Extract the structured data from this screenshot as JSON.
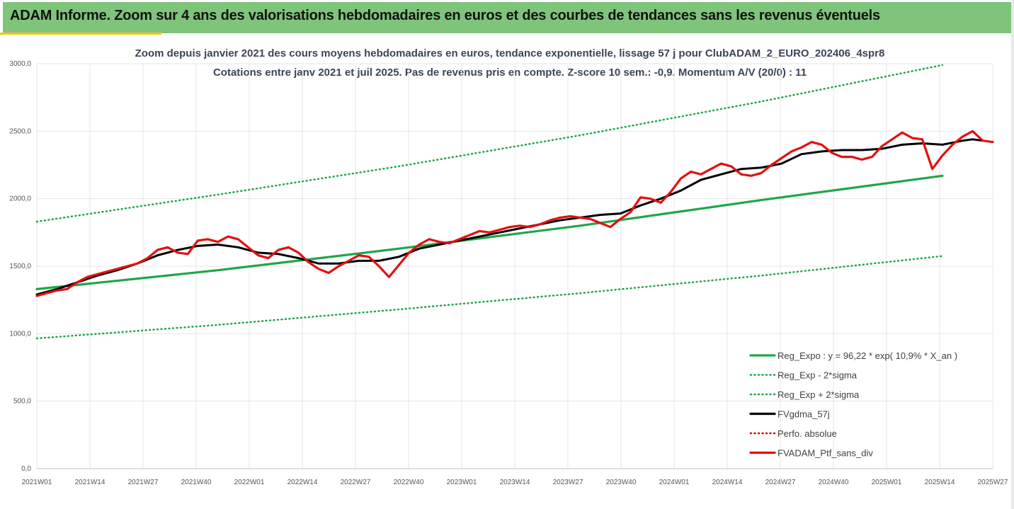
{
  "header": {
    "title": "ADAM Informe. Zoom sur 4 ans des valorisations hebdomadaires en euros et des courbes de tendances sans les revenus éventuels",
    "background": "#7ec47a",
    "accent": "#f5c518"
  },
  "chart_data": {
    "type": "line",
    "title_line1": "Zoom depuis janvier 2021 des cours moyens hebdomadaires  en euros, tendance exponentielle, lissage 57 j pour ClubADAM_2_EURO_202406_4spr8",
    "title_line2": "Cotations  entre janv 2021 et juil 2025. Pas de revenus pris en compte. Z-score 10 sem.: -0,9. Momentum  A/V (20/0) : 11",
    "ylim": [
      0,
      3000
    ],
    "y_ticks": [
      "0,0",
      "500,0",
      "1000,0",
      "1500,0",
      "2000,0",
      "2500,0",
      "3000,0"
    ],
    "x_ticks": [
      "2021W01",
      "2021W14",
      "2021W27",
      "2021W40",
      "2022W01",
      "2022W14",
      "2022W27",
      "2022W40",
      "2023W01",
      "2023W14",
      "2023W27",
      "2023W40",
      "2024W01",
      "2024W14",
      "2024W27",
      "2024W40",
      "2025W01",
      "2025W14",
      "2025W27"
    ],
    "grid": true,
    "legend_position": "bottom-right",
    "series": [
      {
        "name": "Reg_Expo : y = 96,22 * exp( 10,9% *  X_an )",
        "color": "#1fa64a",
        "style": "solid",
        "values": [
          [
            0,
            1330
          ],
          [
            234,
            1470
          ],
          [
            468,
            1630
          ],
          [
            702,
            1800
          ],
          [
            936,
            1990
          ],
          [
            1170,
            2170
          ]
        ]
      },
      {
        "name": "Reg_Exp - 2*sigma",
        "color": "#1fa64a",
        "style": "dotted",
        "values": [
          [
            0,
            965
          ],
          [
            234,
            1065
          ],
          [
            468,
            1180
          ],
          [
            702,
            1300
          ],
          [
            936,
            1430
          ],
          [
            1170,
            1575
          ]
        ]
      },
      {
        "name": "Reg_Exp + 2*sigma",
        "color": "#1fa64a",
        "style": "dotted",
        "values": [
          [
            0,
            1830
          ],
          [
            234,
            2030
          ],
          [
            468,
            2240
          ],
          [
            702,
            2470
          ],
          [
            936,
            2720
          ],
          [
            1170,
            2990
          ]
        ]
      },
      {
        "name": "FVgdma_57j",
        "color": "#000000",
        "style": "solid",
        "values": [
          [
            0,
            1290
          ],
          [
            26,
            1330
          ],
          [
            52,
            1380
          ],
          [
            78,
            1430
          ],
          [
            104,
            1470
          ],
          [
            130,
            1520
          ],
          [
            156,
            1580
          ],
          [
            182,
            1620
          ],
          [
            208,
            1650
          ],
          [
            234,
            1660
          ],
          [
            260,
            1640
          ],
          [
            286,
            1600
          ],
          [
            312,
            1590
          ],
          [
            338,
            1560
          ],
          [
            364,
            1520
          ],
          [
            390,
            1520
          ],
          [
            416,
            1540
          ],
          [
            442,
            1540
          ],
          [
            468,
            1570
          ],
          [
            494,
            1630
          ],
          [
            520,
            1660
          ],
          [
            546,
            1690
          ],
          [
            572,
            1720
          ],
          [
            598,
            1750
          ],
          [
            624,
            1780
          ],
          [
            650,
            1810
          ],
          [
            676,
            1840
          ],
          [
            702,
            1860
          ],
          [
            728,
            1880
          ],
          [
            754,
            1890
          ],
          [
            780,
            1950
          ],
          [
            806,
            2000
          ],
          [
            832,
            2060
          ],
          [
            858,
            2140
          ],
          [
            884,
            2180
          ],
          [
            910,
            2220
          ],
          [
            936,
            2230
          ],
          [
            962,
            2260
          ],
          [
            988,
            2330
          ],
          [
            1014,
            2350
          ],
          [
            1040,
            2360
          ],
          [
            1066,
            2360
          ],
          [
            1092,
            2370
          ],
          [
            1118,
            2400
          ],
          [
            1144,
            2410
          ],
          [
            1170,
            2400
          ],
          [
            1196,
            2430
          ],
          [
            1209,
            2440
          ],
          [
            1222,
            2430
          ]
        ]
      },
      {
        "name": "Perfo. absolue",
        "color": "#e00000",
        "style": "dotted",
        "values": []
      },
      {
        "name": "FVADAM_Ptf_sans_div",
        "color": "#e31010",
        "style": "solid",
        "values": [
          [
            0,
            1280
          ],
          [
            13,
            1300
          ],
          [
            26,
            1320
          ],
          [
            39,
            1330
          ],
          [
            52,
            1380
          ],
          [
            65,
            1420
          ],
          [
            78,
            1440
          ],
          [
            91,
            1460
          ],
          [
            104,
            1480
          ],
          [
            117,
            1500
          ],
          [
            130,
            1520
          ],
          [
            143,
            1560
          ],
          [
            156,
            1620
          ],
          [
            169,
            1640
          ],
          [
            182,
            1600
          ],
          [
            195,
            1590
          ],
          [
            208,
            1690
          ],
          [
            221,
            1700
          ],
          [
            234,
            1680
          ],
          [
            247,
            1720
          ],
          [
            260,
            1700
          ],
          [
            273,
            1640
          ],
          [
            286,
            1580
          ],
          [
            299,
            1560
          ],
          [
            312,
            1620
          ],
          [
            325,
            1640
          ],
          [
            338,
            1600
          ],
          [
            351,
            1530
          ],
          [
            364,
            1480
          ],
          [
            377,
            1450
          ],
          [
            390,
            1500
          ],
          [
            403,
            1540
          ],
          [
            416,
            1580
          ],
          [
            429,
            1570
          ],
          [
            442,
            1500
          ],
          [
            455,
            1420
          ],
          [
            468,
            1510
          ],
          [
            481,
            1600
          ],
          [
            494,
            1660
          ],
          [
            507,
            1700
          ],
          [
            520,
            1680
          ],
          [
            533,
            1670
          ],
          [
            546,
            1700
          ],
          [
            559,
            1730
          ],
          [
            572,
            1760
          ],
          [
            585,
            1750
          ],
          [
            598,
            1770
          ],
          [
            611,
            1790
          ],
          [
            624,
            1800
          ],
          [
            637,
            1790
          ],
          [
            650,
            1810
          ],
          [
            663,
            1840
          ],
          [
            676,
            1860
          ],
          [
            689,
            1870
          ],
          [
            702,
            1860
          ],
          [
            715,
            1850
          ],
          [
            728,
            1820
          ],
          [
            741,
            1790
          ],
          [
            754,
            1850
          ],
          [
            767,
            1900
          ],
          [
            780,
            2010
          ],
          [
            793,
            2000
          ],
          [
            806,
            1970
          ],
          [
            819,
            2050
          ],
          [
            832,
            2150
          ],
          [
            845,
            2200
          ],
          [
            858,
            2180
          ],
          [
            871,
            2220
          ],
          [
            884,
            2260
          ],
          [
            897,
            2240
          ],
          [
            910,
            2180
          ],
          [
            923,
            2170
          ],
          [
            936,
            2190
          ],
          [
            949,
            2250
          ],
          [
            962,
            2300
          ],
          [
            975,
            2350
          ],
          [
            988,
            2380
          ],
          [
            1001,
            2420
          ],
          [
            1014,
            2400
          ],
          [
            1027,
            2340
          ],
          [
            1040,
            2310
          ],
          [
            1053,
            2310
          ],
          [
            1066,
            2290
          ],
          [
            1079,
            2310
          ],
          [
            1092,
            2390
          ],
          [
            1105,
            2440
          ],
          [
            1118,
            2490
          ],
          [
            1131,
            2450
          ],
          [
            1144,
            2440
          ],
          [
            1157,
            2220
          ],
          [
            1170,
            2320
          ],
          [
            1183,
            2400
          ],
          [
            1196,
            2460
          ],
          [
            1209,
            2500
          ],
          [
            1222,
            2430
          ],
          [
            1235,
            2420
          ]
        ]
      }
    ]
  }
}
